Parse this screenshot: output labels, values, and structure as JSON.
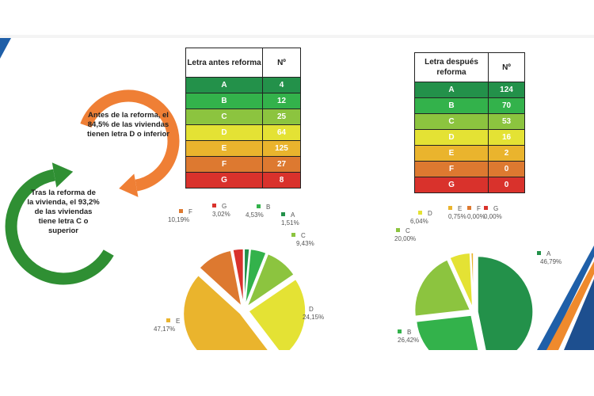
{
  "colors": {
    "A": "#23914a",
    "B": "#33b24b",
    "C": "#8cc43f",
    "D": "#e4e234",
    "E": "#eab42d",
    "F": "#dd7930",
    "G": "#d9322c"
  },
  "arrows": {
    "top_text": "Antes de la reforma, el 84,5% de las viviendas tienen letra D o inferior",
    "bottom_text": "Tras la reforma de la vivienda, el 93,2% de las viviendas tiene letra C o superior",
    "top_color": "#ef7f35",
    "bottom_color": "#2f8f33"
  },
  "chart_data": [
    {
      "type": "table",
      "headers": [
        "Letra antes reforma",
        "Nº"
      ],
      "rows": [
        [
          "A",
          "4"
        ],
        [
          "B",
          "12"
        ],
        [
          "C",
          "25"
        ],
        [
          "D",
          "64"
        ],
        [
          "E",
          "125"
        ],
        [
          "F",
          "27"
        ],
        [
          "G",
          "8"
        ]
      ]
    },
    {
      "type": "table",
      "headers": [
        "Letra después reforma",
        "Nº"
      ],
      "rows": [
        [
          "A",
          "124"
        ],
        [
          "B",
          "70"
        ],
        [
          "C",
          "53"
        ],
        [
          "D",
          "16"
        ],
        [
          "E",
          "2"
        ],
        [
          "F",
          "0"
        ],
        [
          "G",
          "0"
        ]
      ]
    },
    {
      "type": "pie",
      "categories": [
        "A",
        "B",
        "C",
        "D",
        "E",
        "F",
        "G"
      ],
      "values": [
        4,
        12,
        25,
        64,
        125,
        27,
        8
      ],
      "percent_labels": [
        "1,51%",
        "4,53%",
        "9,43%",
        "24,15%",
        "47,17%",
        "10,19%",
        "3,02%"
      ],
      "legend": "inline"
    },
    {
      "type": "pie",
      "categories": [
        "A",
        "B",
        "C",
        "D",
        "E",
        "F",
        "G"
      ],
      "values": [
        124,
        70,
        53,
        16,
        2,
        0,
        0
      ],
      "percent_labels": [
        "46,79%",
        "26,42%",
        "20,00%",
        "6,04%",
        "0,75%",
        "0,00%",
        "0,00%"
      ],
      "legend": "inline"
    }
  ]
}
